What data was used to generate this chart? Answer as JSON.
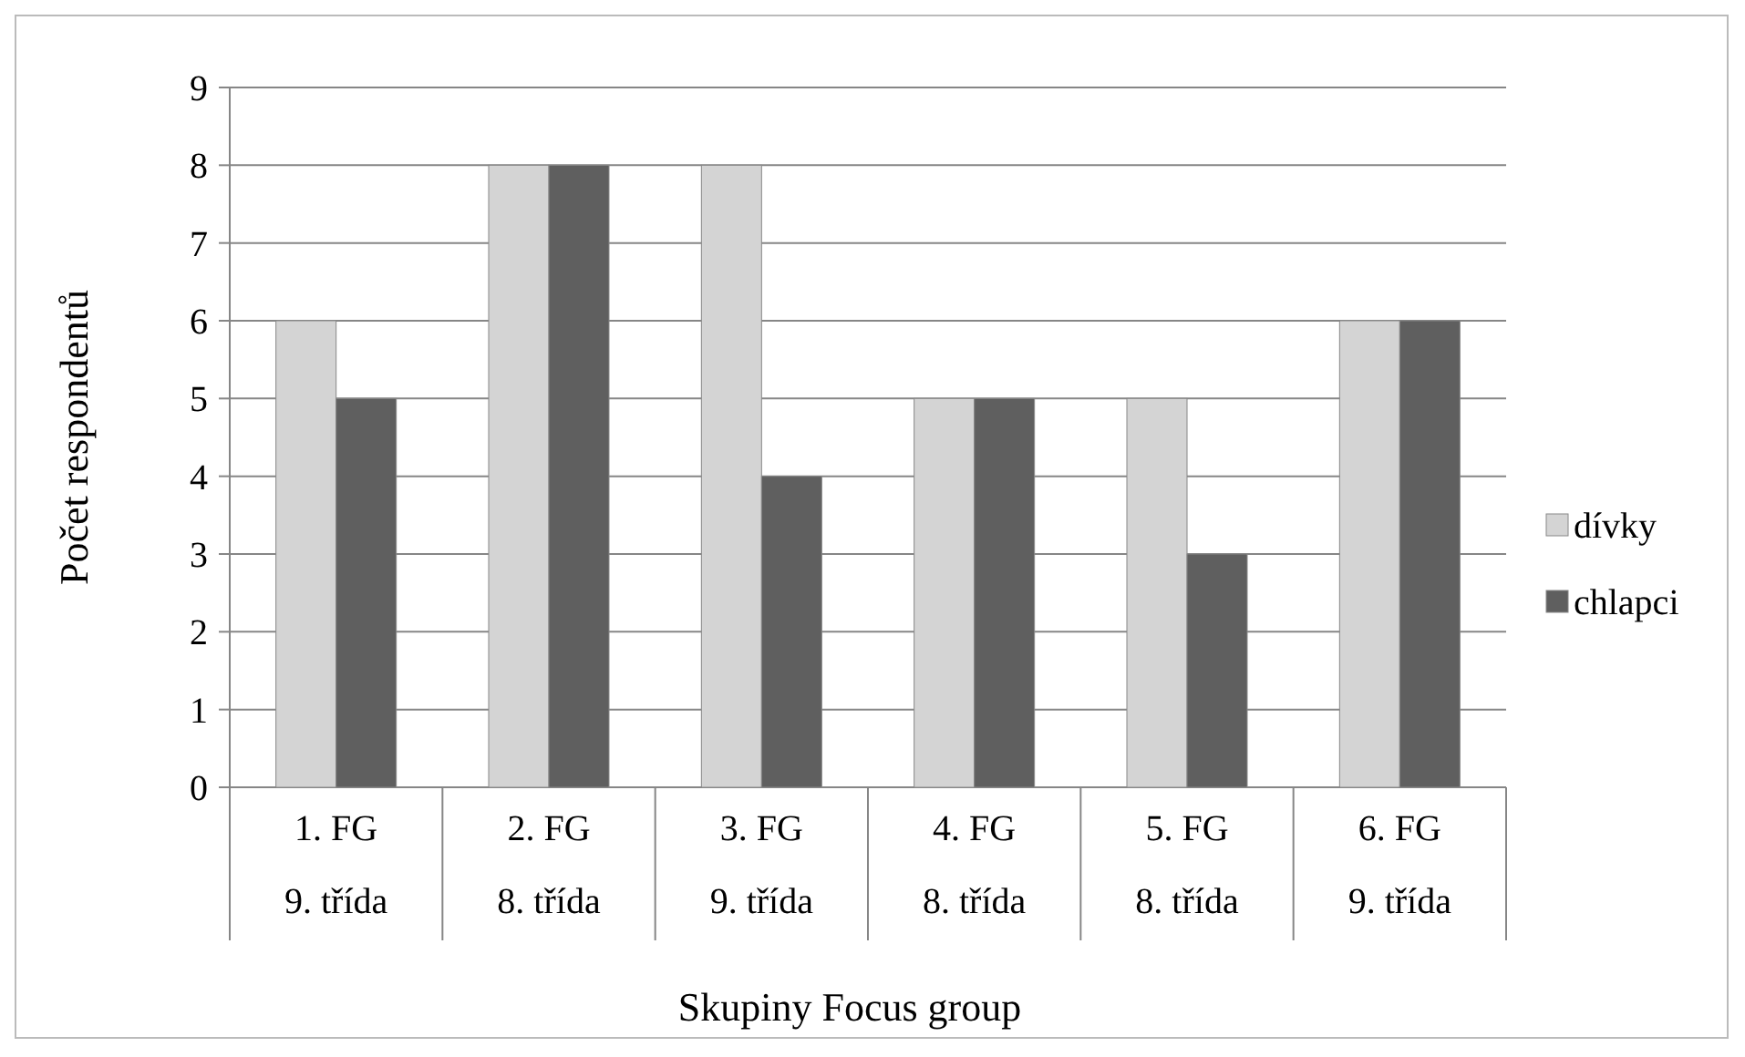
{
  "chart_data": {
    "type": "bar",
    "xlabel": "Skupiny Focus group",
    "ylabel": "Počet respondentů",
    "categories": [
      "1. FG\n9. třída",
      "2. FG\n8. třída",
      "3. FG\n9. třída",
      "4. FG\n8. třída",
      "5. FG\n8. třída",
      "6. FG\n9. třída"
    ],
    "series": [
      {
        "name": "dívky",
        "color": "#d4d4d4",
        "values": [
          6,
          8,
          8,
          5,
          5,
          6
        ]
      },
      {
        "name": "chlapci",
        "color": "#5f5f5f",
        "values": [
          5,
          8,
          4,
          5,
          3,
          6
        ]
      }
    ],
    "ylim": [
      0,
      9
    ],
    "yticks": [
      0,
      1,
      2,
      3,
      4,
      5,
      6,
      7,
      8,
      9
    ],
    "grid": "y",
    "legend": "right"
  }
}
